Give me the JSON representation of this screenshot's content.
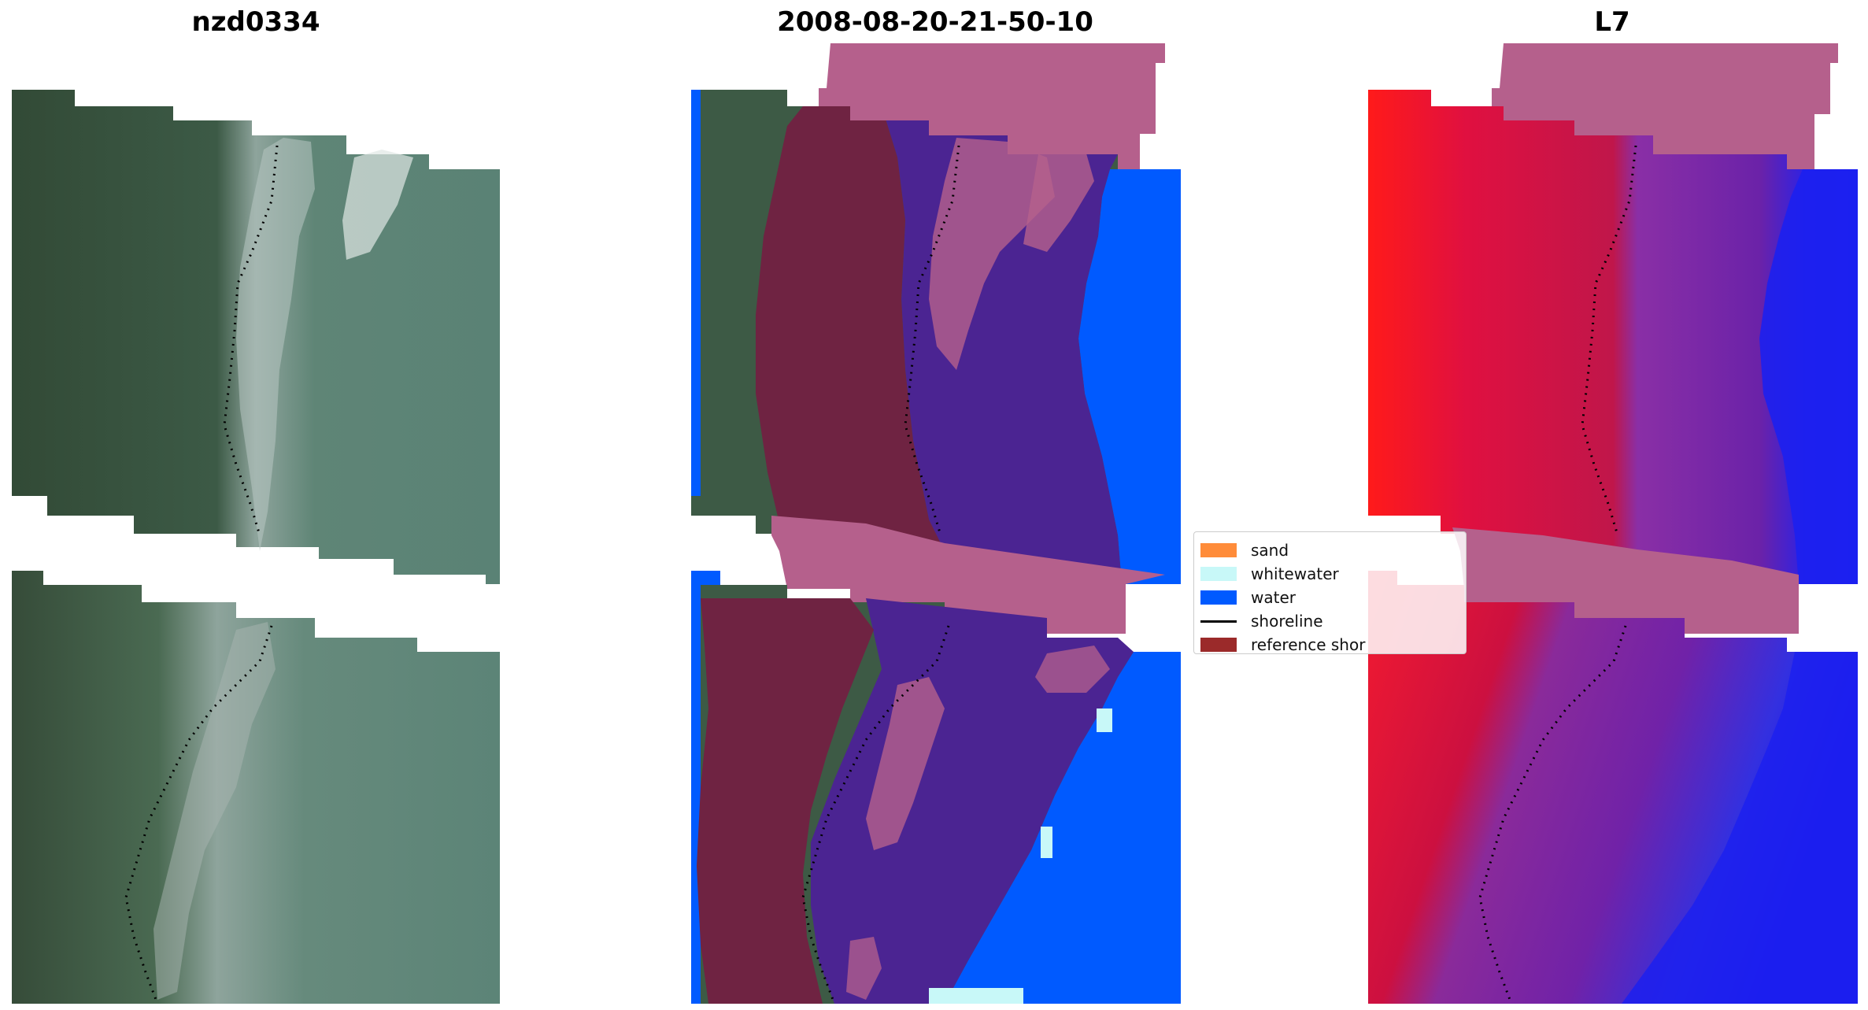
{
  "titles": {
    "left": "nzd0334",
    "center": "2008-08-20-21-50-10",
    "right": "L7"
  },
  "legend": {
    "items": [
      {
        "label": "sand",
        "color": "#ff8c3a",
        "kind": "patch"
      },
      {
        "label": "whitewater",
        "color": "#c8f8f8",
        "kind": "patch"
      },
      {
        "label": "water",
        "color": "#005aff",
        "kind": "patch"
      },
      {
        "label": "shoreline",
        "color": "#000000",
        "kind": "line"
      },
      {
        "label": "reference shor",
        "color": "#9b2a2a",
        "kind": "patch"
      }
    ]
  },
  "colors": {
    "rgb_land": "#35503b",
    "rgb_sea": "#557d6f",
    "rgb_surf": "#aab6b2",
    "class_land": "#6f2342",
    "class_sea": "#4b2492",
    "class_water": "#005aff",
    "ref_buffer": "#b5608c",
    "index_red": "#e0113a",
    "index_purple": "#7c22a5",
    "index_blue": "#1c20ef"
  }
}
